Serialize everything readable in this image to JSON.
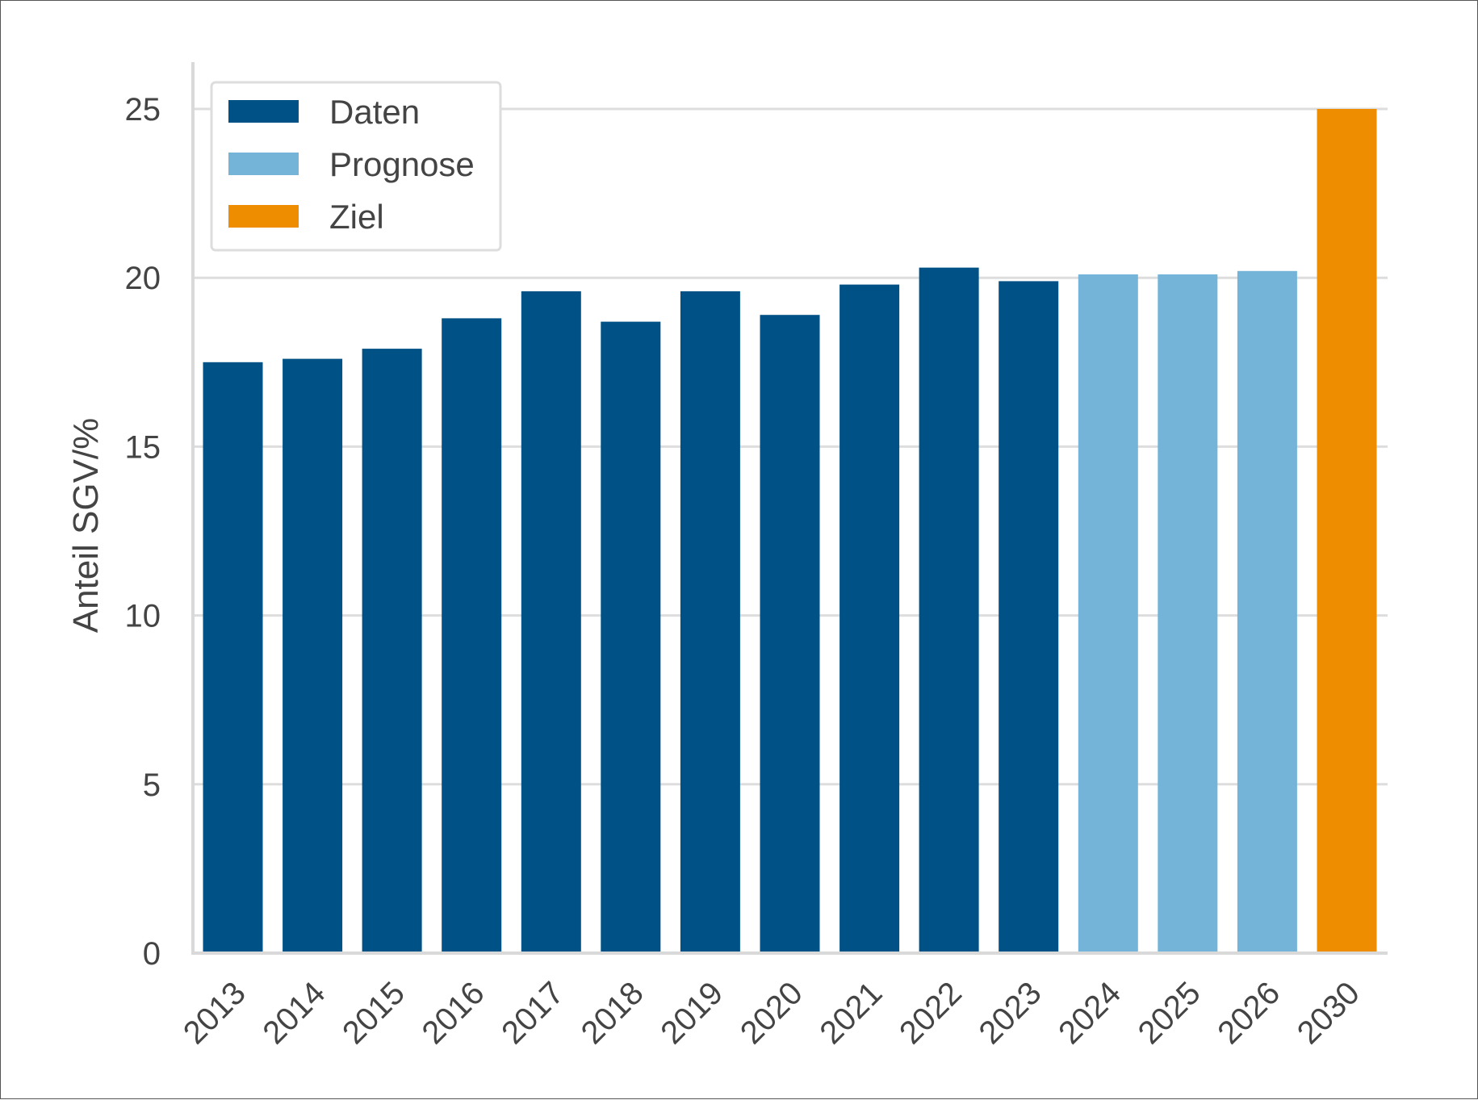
{
  "chart_data": {
    "type": "bar",
    "title": "",
    "xlabel": "",
    "ylabel": "Anteil SGV/%",
    "ylim": [
      0,
      26
    ],
    "yticks": [
      0,
      5,
      10,
      15,
      20,
      25
    ],
    "grid": "horizontal",
    "legend_position": "top-left",
    "categories": [
      "2013",
      "2014",
      "2015",
      "2016",
      "2017",
      "2018",
      "2019",
      "2020",
      "2021",
      "2022",
      "2023",
      "2024",
      "2025",
      "2026",
      "2030"
    ],
    "values": [
      17.5,
      17.6,
      17.9,
      18.8,
      19.6,
      18.7,
      19.6,
      18.9,
      19.8,
      20.3,
      19.9,
      20.1,
      20.1,
      20.2,
      25.0
    ],
    "bar_series": [
      "Daten",
      "Daten",
      "Daten",
      "Daten",
      "Daten",
      "Daten",
      "Daten",
      "Daten",
      "Daten",
      "Daten",
      "Daten",
      "Prognose",
      "Prognose",
      "Prognose",
      "Ziel"
    ],
    "legend": [
      {
        "name": "Daten",
        "color": "#005185"
      },
      {
        "name": "Prognose",
        "color": "#74B4D8"
      },
      {
        "name": "Ziel",
        "color": "#EF8D00"
      }
    ],
    "colors": {
      "axis": "#d9d9d9",
      "grid": "#dddddd",
      "text": "#444444",
      "frame": "#555555"
    }
  }
}
